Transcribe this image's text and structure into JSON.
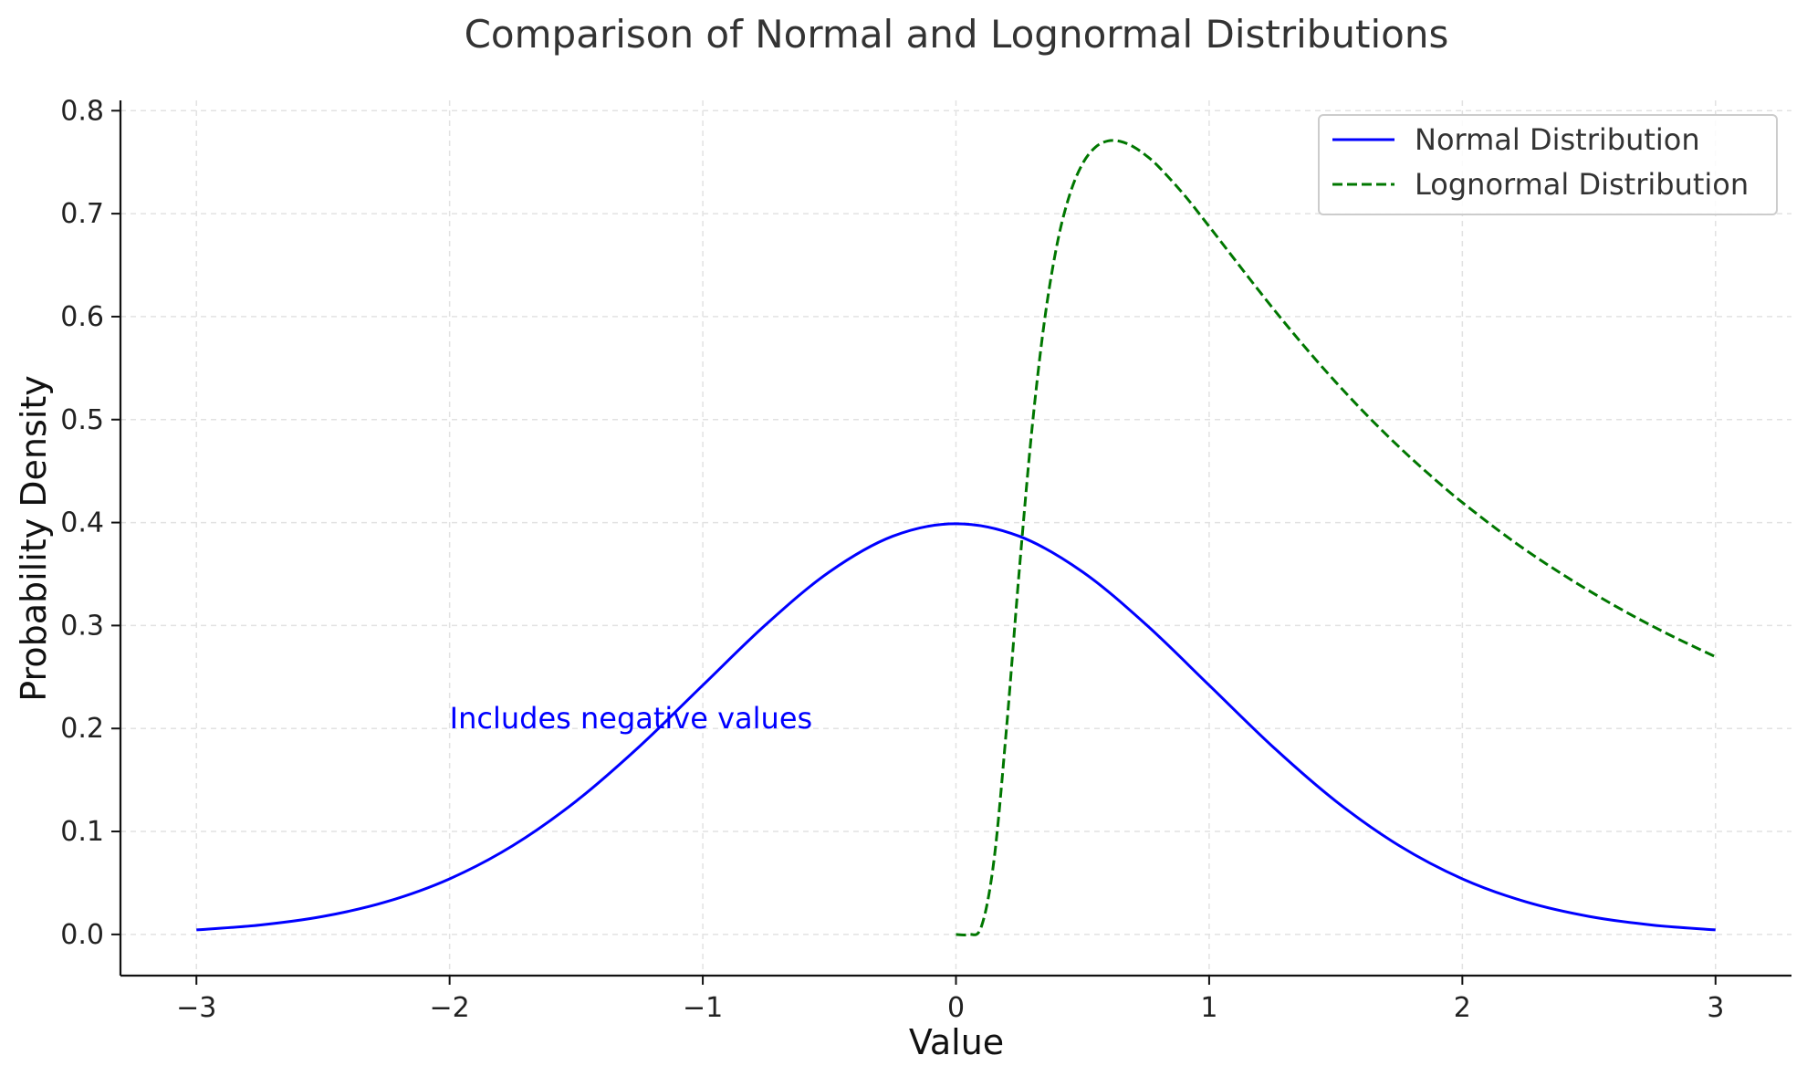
{
  "chart_data": {
    "type": "line",
    "title": "Comparison of Normal and Lognormal Distributions",
    "xlabel": "Value",
    "ylabel": "Probability Density",
    "xlim": [
      -3.3,
      3.3
    ],
    "ylim": [
      -0.04,
      0.81
    ],
    "x_ticks": [
      -3,
      -2,
      -1,
      0,
      1,
      2,
      3
    ],
    "x_tick_labels": [
      "−3",
      "−2",
      "−1",
      "0",
      "1",
      "2",
      "3"
    ],
    "y_ticks": [
      0.0,
      0.1,
      0.2,
      0.3,
      0.4,
      0.5,
      0.6,
      0.7,
      0.8
    ],
    "y_tick_labels": [
      "0.0",
      "0.1",
      "0.2",
      "0.3",
      "0.4",
      "0.5",
      "0.6",
      "0.7",
      "0.8"
    ],
    "grid": true,
    "legend_position": "top-right",
    "series": [
      {
        "name": "Normal Distribution",
        "color": "#0000ff",
        "style": "solid",
        "x": [
          -3.0,
          -2.75,
          -2.5,
          -2.25,
          -2.0,
          -1.75,
          -1.5,
          -1.25,
          -1.0,
          -0.75,
          -0.5,
          -0.25,
          0.0,
          0.25,
          0.5,
          0.75,
          1.0,
          1.25,
          1.5,
          1.75,
          2.0,
          2.25,
          2.5,
          2.75,
          3.0
        ],
        "y": [
          0.0044,
          0.0091,
          0.0175,
          0.0317,
          0.054,
          0.0863,
          0.1295,
          0.1826,
          0.242,
          0.3011,
          0.3521,
          0.3867,
          0.3989,
          0.3867,
          0.3521,
          0.3011,
          0.242,
          0.1826,
          0.1295,
          0.0863,
          0.054,
          0.0317,
          0.0175,
          0.0091,
          0.0044
        ]
      },
      {
        "name": "Lognormal Distribution",
        "color": "#007700",
        "style": "dashed",
        "x": [
          0.0,
          0.05,
          0.1,
          0.15,
          0.2,
          0.25,
          0.3,
          0.35,
          0.4,
          0.45,
          0.5,
          0.55,
          0.6,
          0.65,
          0.7,
          0.75,
          0.8,
          0.9,
          1.0,
          1.1,
          1.2,
          1.3,
          1.4,
          1.5,
          1.6,
          1.7,
          1.8,
          1.9,
          2.0,
          2.2,
          2.4,
          2.6,
          2.8,
          3.0
        ],
        "y": [
          0.0,
          0.0,
          0.0073,
          0.0718,
          0.2014,
          0.3534,
          0.4905,
          0.5967,
          0.6711,
          0.7191,
          0.7485,
          0.7644,
          0.7706,
          0.7701,
          0.7651,
          0.7566,
          0.7457,
          0.7186,
          0.6876,
          0.6557,
          0.6241,
          0.5935,
          0.5642,
          0.5364,
          0.5101,
          0.4853,
          0.462,
          0.4401,
          0.4195,
          0.382,
          0.349,
          0.3195,
          0.2932,
          0.2696
        ]
      }
    ],
    "annotations": [
      {
        "text": "Includes negative values",
        "x": -2.0,
        "y": 0.2,
        "color": "#0000ff"
      }
    ]
  }
}
